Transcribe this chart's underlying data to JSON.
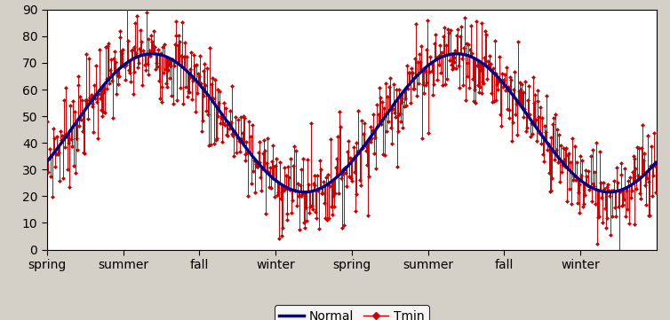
{
  "ylim": [
    0,
    90
  ],
  "yticks": [
    0,
    10,
    20,
    30,
    40,
    50,
    60,
    70,
    80,
    90
  ],
  "seasons": [
    "spring",
    "summer",
    "fall",
    "winter",
    "spring",
    "summer",
    "fall",
    "winter"
  ],
  "season_positions": [
    0.0,
    0.125,
    0.25,
    0.375,
    0.5,
    0.625,
    0.75,
    0.875
  ],
  "sin_amplitude": 21.5,
  "sin_C": 47.5,
  "sin_freq": 2,
  "sin_phi_deg": -34.0,
  "noise_std": 9.0,
  "n_points": 730,
  "curve_color": "#00008B",
  "curve_linewidth": 2.5,
  "scatter_color": "#CC0000",
  "scatter_marker": "D",
  "scatter_markersize": 2.5,
  "errorbar_linewidth": 0.7,
  "background_color": "#D4D0C8",
  "plot_bg_color": "#FFFFFF",
  "legend_normal": "Normal",
  "legend_tmin": "Tmin",
  "figsize": [
    7.54,
    3.61
  ],
  "dpi": 100,
  "random_seed": 7
}
